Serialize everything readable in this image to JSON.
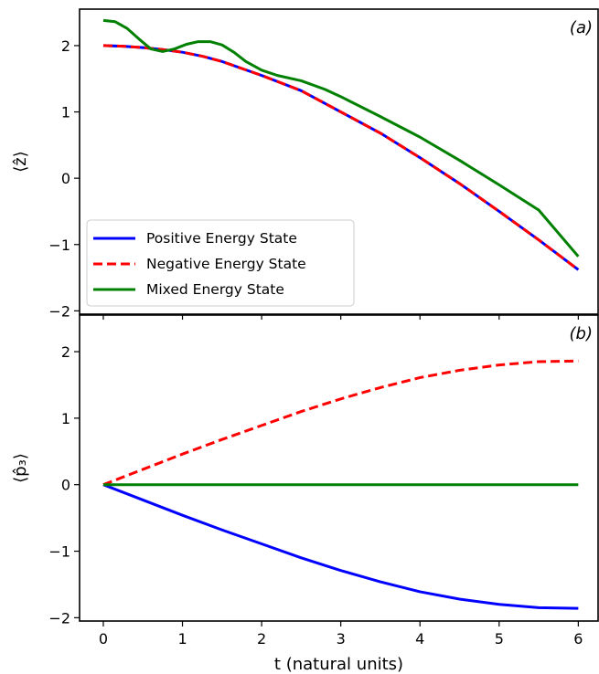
{
  "chart_data": [
    {
      "type": "line",
      "panel_label": "(a)",
      "ylabel": "⟨ẑ⟩",
      "xlim": [
        -0.3,
        6.25
      ],
      "ylim": [
        -2.05,
        2.55
      ],
      "xticks": [
        0,
        1,
        2,
        3,
        4,
        5,
        6
      ],
      "yticks": [
        -2,
        -1,
        0,
        1,
        2
      ],
      "ytick_labels": [
        "−2",
        "−1",
        "0",
        "1",
        "2"
      ],
      "legend_position": "lower-left",
      "series": [
        {
          "name": "Positive Energy State",
          "color": "#0000ff",
          "style": "solid",
          "x": [
            0,
            0.25,
            0.5,
            0.75,
            1,
            1.25,
            1.5,
            2,
            2.5,
            3,
            3.5,
            4,
            4.5,
            5,
            5.5,
            6
          ],
          "y": [
            2.0,
            1.99,
            1.97,
            1.94,
            1.9,
            1.84,
            1.76,
            1.55,
            1.32,
            1.0,
            0.68,
            0.31,
            -0.08,
            -0.5,
            -0.93,
            -1.38
          ]
        },
        {
          "name": "Negative Energy State",
          "color": "#ff0000",
          "style": "dashed",
          "x": [
            0,
            0.25,
            0.5,
            0.75,
            1,
            1.25,
            1.5,
            2,
            2.5,
            3,
            3.5,
            4,
            4.5,
            5,
            5.5,
            6
          ],
          "y": [
            2.0,
            1.99,
            1.97,
            1.94,
            1.9,
            1.84,
            1.76,
            1.55,
            1.32,
            1.0,
            0.68,
            0.31,
            -0.08,
            -0.5,
            -0.93,
            -1.38
          ]
        },
        {
          "name": "Mixed Energy State",
          "color": "#008000",
          "style": "solid",
          "x": [
            0,
            0.15,
            0.3,
            0.45,
            0.6,
            0.75,
            0.9,
            1.05,
            1.2,
            1.35,
            1.5,
            1.65,
            1.8,
            2,
            2.2,
            2.5,
            2.8,
            3,
            3.5,
            4,
            4.5,
            5,
            5.5,
            6
          ],
          "y": [
            2.38,
            2.36,
            2.26,
            2.1,
            1.95,
            1.91,
            1.95,
            2.02,
            2.06,
            2.06,
            2.01,
            1.9,
            1.76,
            1.63,
            1.55,
            1.47,
            1.34,
            1.23,
            0.93,
            0.62,
            0.27,
            -0.1,
            -0.48,
            -1.18
          ]
        }
      ]
    },
    {
      "type": "line",
      "panel_label": "(b)",
      "ylabel": "⟨p̂₃⟩",
      "xlabel": "t (natural units)",
      "xlim": [
        -0.3,
        6.25
      ],
      "ylim": [
        -2.05,
        2.55
      ],
      "xticks": [
        0,
        1,
        2,
        3,
        4,
        5,
        6
      ],
      "xtick_labels": [
        "0",
        "1",
        "2",
        "3",
        "4",
        "5",
        "6"
      ],
      "yticks": [
        -2,
        -1,
        0,
        1,
        2
      ],
      "ytick_labels": [
        "−2",
        "−1",
        "0",
        "1",
        "2"
      ],
      "series": [
        {
          "name": "Positive Energy State",
          "color": "#0000ff",
          "style": "solid",
          "x": [
            0,
            0.5,
            1,
            1.5,
            2,
            2.5,
            3,
            3.5,
            4,
            4.5,
            5,
            5.5,
            6
          ],
          "y": [
            0,
            -0.23,
            -0.46,
            -0.68,
            -0.89,
            -1.1,
            -1.29,
            -1.46,
            -1.61,
            -1.72,
            -1.8,
            -1.85,
            -1.86
          ]
        },
        {
          "name": "Negative Energy State",
          "color": "#ff0000",
          "style": "dashed",
          "x": [
            0,
            0.5,
            1,
            1.5,
            2,
            2.5,
            3,
            3.5,
            4,
            4.5,
            5,
            5.5,
            6
          ],
          "y": [
            0,
            0.23,
            0.46,
            0.68,
            0.89,
            1.1,
            1.29,
            1.46,
            1.61,
            1.72,
            1.8,
            1.85,
            1.86
          ]
        },
        {
          "name": "Mixed Energy State",
          "color": "#008000",
          "style": "solid",
          "x": [
            0,
            6
          ],
          "y": [
            0,
            0
          ]
        }
      ]
    }
  ]
}
